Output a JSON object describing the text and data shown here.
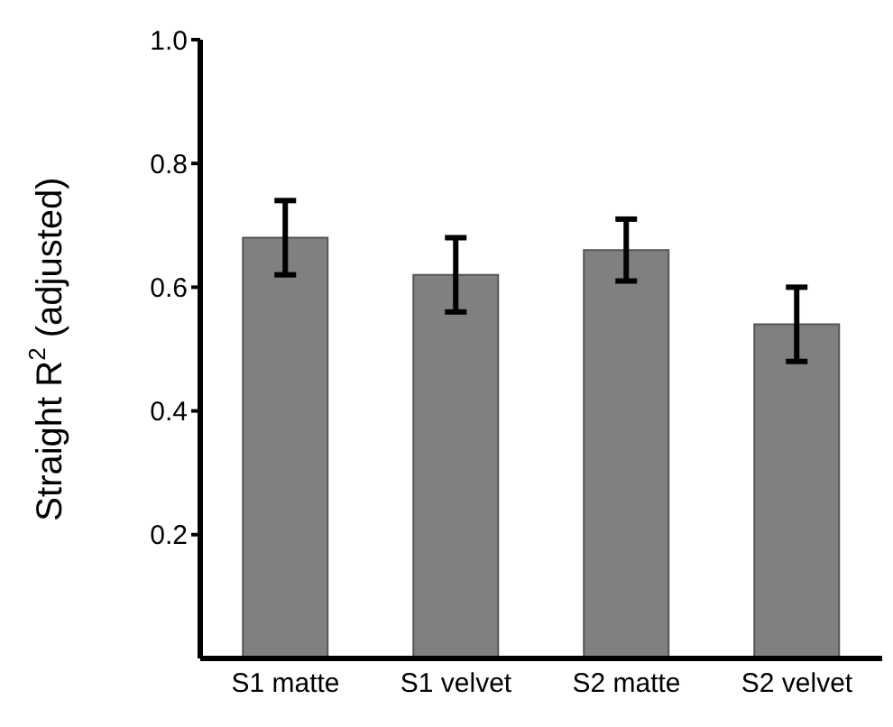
{
  "chart_data": {
    "type": "bar",
    "ylabel": "Straight R$^{2}$ (adjusted)",
    "categories": [
      "S1 matte",
      "S1 velvet",
      "S2 matte",
      "S2 velvet"
    ],
    "values": [
      0.68,
      0.62,
      0.66,
      0.54
    ],
    "errors": [
      0.06,
      0.06,
      0.05,
      0.06
    ],
    "color": "#808080",
    "ylim": [
      0,
      1.0
    ],
    "yticks": [
      0.2,
      0.4,
      0.6,
      0.8,
      {
        "value": 1,
        "label": "1.0"
      }
    ],
    "grid": false,
    "legend": false
  }
}
